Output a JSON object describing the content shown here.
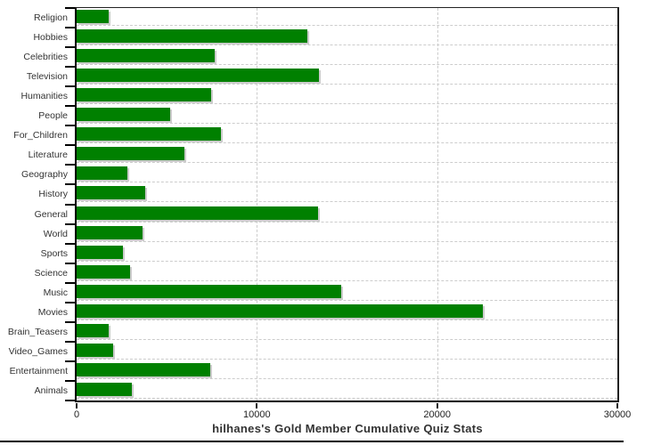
{
  "chart_data": {
    "type": "bar",
    "orientation": "horizontal",
    "title": "hilhanes's Gold Member Cumulative Quiz Stats",
    "categories": [
      "Religion",
      "Hobbies",
      "Celebrities",
      "Television",
      "Humanities",
      "People",
      "For_Children",
      "Literature",
      "Geography",
      "History",
      "General",
      "World",
      "Sports",
      "Science",
      "Music",
      "Movies",
      "Brain_Teasers",
      "Video_Games",
      "Entertainment",
      "Animals"
    ],
    "values": [
      1800,
      12800,
      7650,
      13450,
      7450,
      5200,
      8000,
      6000,
      2800,
      3800,
      13400,
      3650,
      2550,
      2950,
      14700,
      22550,
      1800,
      2050,
      7400,
      3050
    ],
    "xlabel": "",
    "ylabel": "",
    "xlim": [
      0,
      30000
    ],
    "xticks": [
      0,
      10000,
      20000,
      30000
    ],
    "xtick_labels": [
      "0",
      "10000",
      "20000",
      "30000"
    ],
    "grid": true,
    "legend": "none",
    "colors": {
      "bar": "#008000",
      "bar_shadow": "#cccccc",
      "gridline": "#cccccc",
      "axis": "#000000",
      "frame": "#222222",
      "label_text": "#333333",
      "tick_text": "#222222",
      "title_text": "#333333",
      "background": "#ffffff"
    }
  }
}
